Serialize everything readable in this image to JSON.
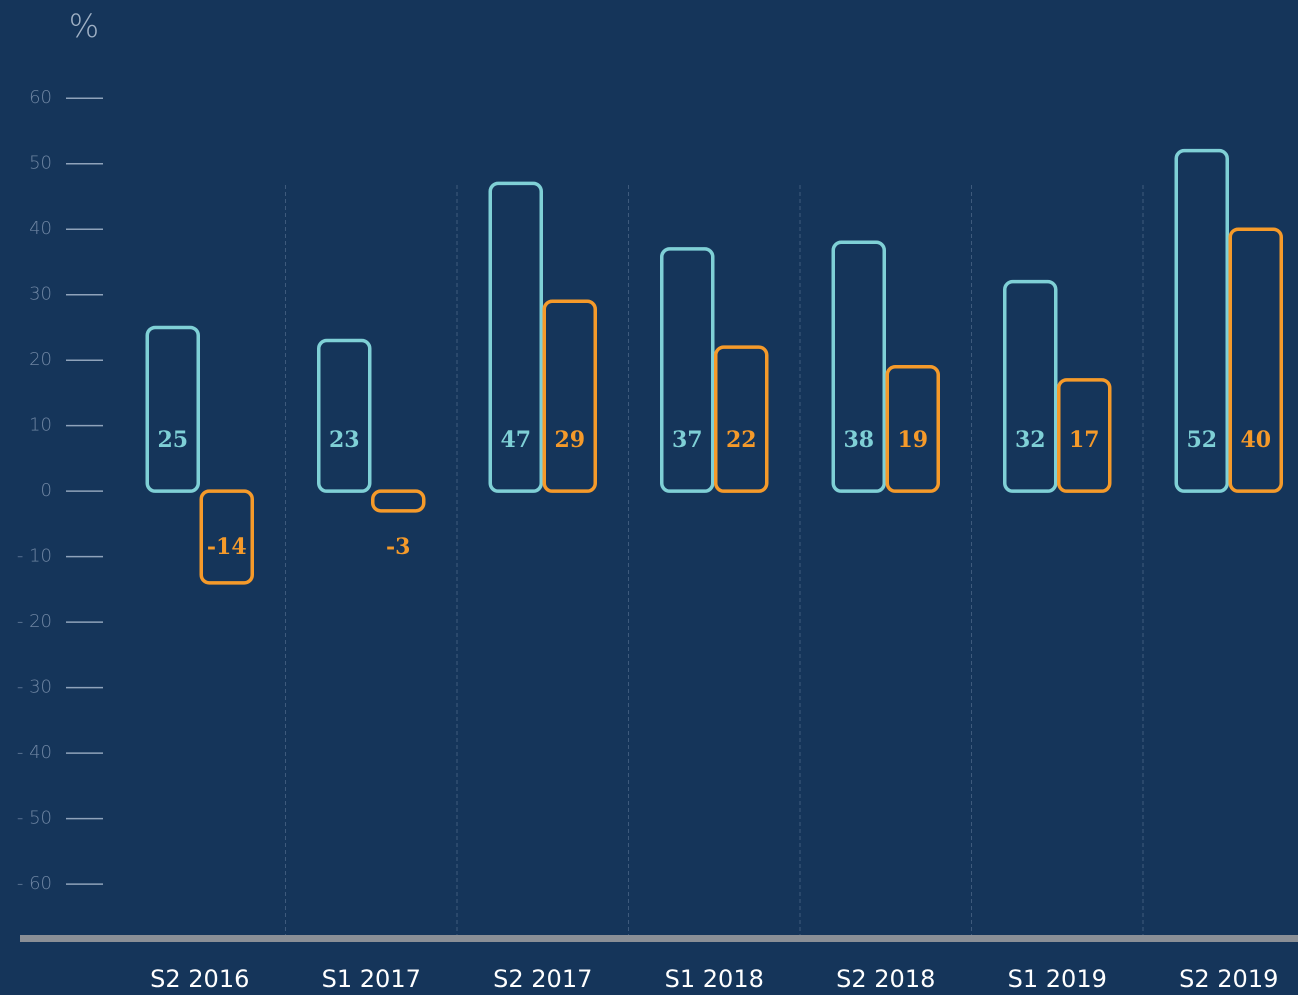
{
  "chart_data": {
    "type": "bar",
    "y_axis_label": "%",
    "categories": [
      "S2 2016",
      "S1 2017",
      "S2 2017",
      "S1 2018",
      "S2 2018",
      "S1 2019",
      "S2 2019"
    ],
    "series": [
      {
        "color": "#7fd0d6",
        "values": [
          25,
          23,
          47,
          37,
          38,
          32,
          52
        ]
      },
      {
        "color": "#f59a2a",
        "values": [
          -14,
          -3,
          29,
          22,
          19,
          17,
          40
        ]
      }
    ],
    "ylim": [
      -68,
      75
    ],
    "yticks": [
      60,
      50,
      40,
      30,
      20,
      10,
      0,
      {
        "value": -10,
        "label": "- 10"
      },
      {
        "value": -20,
        "label": "- 20"
      },
      {
        "value": -30,
        "label": "- 30"
      },
      {
        "value": -40,
        "label": "- 40"
      },
      {
        "value": -50,
        "label": "- 50"
      },
      {
        "value": -60,
        "label": "- 60"
      }
    ]
  }
}
